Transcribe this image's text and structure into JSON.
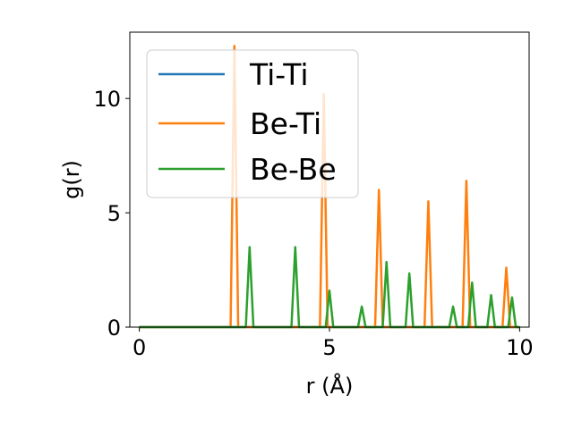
{
  "chart_data": {
    "type": "line",
    "title": "",
    "xlabel": "r (Å)",
    "ylabel": "g(r)",
    "xlim": [
      -0.25,
      10.25
    ],
    "ylim": [
      0,
      12.9
    ],
    "xticks": [
      0,
      5,
      10
    ],
    "yticks": [
      0,
      5,
      10
    ],
    "grid": false,
    "legend_position": "upper-left",
    "series": [
      {
        "name": "Ti-Ti",
        "color": "#1f77b4",
        "x": [
          0,
          10
        ],
        "y": [
          0,
          0
        ]
      },
      {
        "name": "Be-Ti",
        "color": "#ff7f0e",
        "x": [
          0,
          2.4,
          2.5,
          2.6,
          4.75,
          4.85,
          4.95,
          6.2,
          6.3,
          6.4,
          7.5,
          7.6,
          7.7,
          8.5,
          8.6,
          8.7,
          9.55,
          9.65,
          9.75,
          10
        ],
        "y": [
          0,
          0,
          12.3,
          0,
          0,
          10.2,
          0,
          0,
          6.0,
          0,
          0,
          5.5,
          0,
          0,
          6.4,
          0,
          0,
          2.6,
          0,
          0
        ]
      },
      {
        "name": "Be-Be",
        "color": "#2ca02c",
        "x": [
          0,
          2.8,
          2.9,
          3.0,
          4.0,
          4.1,
          4.2,
          4.9,
          5.0,
          5.1,
          5.75,
          5.85,
          5.95,
          6.4,
          6.5,
          6.6,
          7.0,
          7.1,
          7.2,
          8.15,
          8.25,
          8.35,
          8.65,
          8.75,
          8.85,
          9.15,
          9.25,
          9.35,
          9.7,
          9.8,
          9.9,
          10
        ],
        "y": [
          0,
          0,
          3.5,
          0,
          0,
          3.5,
          0,
          0,
          1.6,
          0,
          0,
          0.9,
          0,
          0,
          2.85,
          0,
          0,
          2.35,
          0,
          0,
          0.9,
          0,
          0,
          1.95,
          0,
          0,
          1.4,
          0,
          0,
          1.3,
          0,
          0
        ]
      }
    ]
  }
}
